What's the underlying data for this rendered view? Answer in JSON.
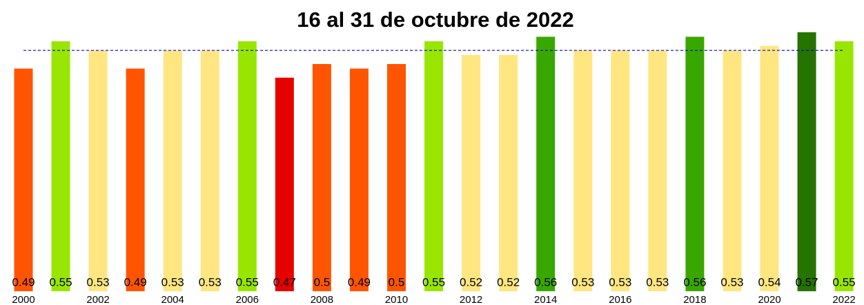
{
  "chart_data": {
    "type": "bar",
    "title": "16 al 31 de octubre de 2022",
    "categories": [
      "2000",
      null,
      "2002",
      null,
      "2004",
      null,
      "2006",
      null,
      "2008",
      null,
      "2010",
      null,
      "2012",
      null,
      "2014",
      null,
      "2016",
      null,
      "2018",
      null,
      "2020",
      null,
      "2022"
    ],
    "values": [
      0.49,
      0.55,
      0.53,
      0.49,
      0.53,
      0.53,
      0.55,
      0.47,
      0.5,
      0.49,
      0.5,
      0.55,
      0.52,
      0.52,
      0.56,
      0.53,
      0.53,
      0.53,
      0.56,
      0.53,
      0.54,
      0.57,
      0.55
    ],
    "colors": [
      "#ff5500",
      "#98e600",
      "#ffe680",
      "#ff5500",
      "#ffe680",
      "#ffe680",
      "#98e600",
      "#e60000",
      "#ff5500",
      "#ff5500",
      "#ff5500",
      "#98e600",
      "#ffe680",
      "#ffe680",
      "#38a800",
      "#ffe680",
      "#ffe680",
      "#ffe680",
      "#38a800",
      "#ffe680",
      "#ffe680",
      "#267300",
      "#98e600"
    ],
    "ylim": [
      0,
      0.6
    ],
    "reference_line": {
      "value": 0.53,
      "color": "#0000cc"
    }
  }
}
